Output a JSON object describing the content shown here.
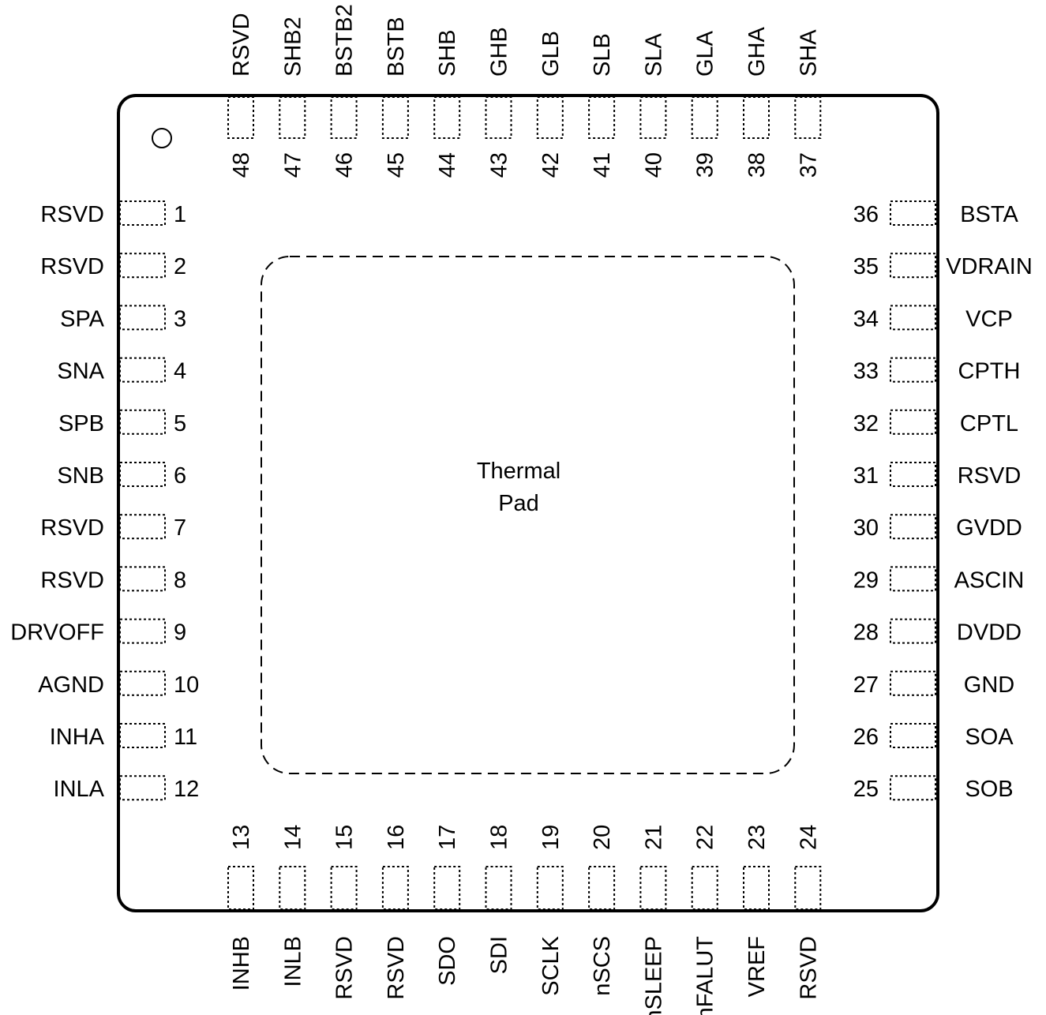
{
  "package": {
    "left_pins": [
      {
        "num": "1",
        "name": "RSVD"
      },
      {
        "num": "2",
        "name": "RSVD"
      },
      {
        "num": "3",
        "name": "SPA"
      },
      {
        "num": "4",
        "name": "SNA"
      },
      {
        "num": "5",
        "name": "SPB"
      },
      {
        "num": "6",
        "name": "SNB"
      },
      {
        "num": "7",
        "name": "RSVD"
      },
      {
        "num": "8",
        "name": "RSVD"
      },
      {
        "num": "9",
        "name": "DRVOFF"
      },
      {
        "num": "10",
        "name": "AGND"
      },
      {
        "num": "11",
        "name": "INHA"
      },
      {
        "num": "12",
        "name": "INLA"
      }
    ],
    "bottom_pins": [
      {
        "num": "13",
        "name": "INHB"
      },
      {
        "num": "14",
        "name": "INLB"
      },
      {
        "num": "15",
        "name": "RSVD"
      },
      {
        "num": "16",
        "name": "RSVD"
      },
      {
        "num": "17",
        "name": "SDO"
      },
      {
        "num": "18",
        "name": "SDI"
      },
      {
        "num": "19",
        "name": "SCLK"
      },
      {
        "num": "20",
        "name": "nSCS"
      },
      {
        "num": "21",
        "name": "nSLEEP"
      },
      {
        "num": "22",
        "name": "nFALUT"
      },
      {
        "num": "23",
        "name": "VREF"
      },
      {
        "num": "24",
        "name": "RSVD"
      }
    ],
    "right_pins": [
      {
        "num": "36",
        "name": "BSTA"
      },
      {
        "num": "35",
        "name": "VDRAIN"
      },
      {
        "num": "34",
        "name": "VCP"
      },
      {
        "num": "33",
        "name": "CPTH"
      },
      {
        "num": "32",
        "name": "CPTL"
      },
      {
        "num": "31",
        "name": "RSVD"
      },
      {
        "num": "30",
        "name": "GVDD"
      },
      {
        "num": "29",
        "name": "ASCIN"
      },
      {
        "num": "28",
        "name": "DVDD"
      },
      {
        "num": "27",
        "name": "GND"
      },
      {
        "num": "26",
        "name": "SOA"
      },
      {
        "num": "25",
        "name": "SOB"
      }
    ],
    "top_pins": [
      {
        "num": "48",
        "name": "RSVD"
      },
      {
        "num": "47",
        "name": "SHB2"
      },
      {
        "num": "46",
        "name": "BSTB2"
      },
      {
        "num": "45",
        "name": "BSTB"
      },
      {
        "num": "44",
        "name": "SHB"
      },
      {
        "num": "43",
        "name": "GHB"
      },
      {
        "num": "42",
        "name": "GLB"
      },
      {
        "num": "41",
        "name": "SLB"
      },
      {
        "num": "40",
        "name": "SLA"
      },
      {
        "num": "39",
        "name": "GLA"
      },
      {
        "num": "38",
        "name": "GHA"
      },
      {
        "num": "37",
        "name": "SHA"
      }
    ],
    "thermal_pad": {
      "line1": "Thermal",
      "line2": "Pad"
    }
  }
}
